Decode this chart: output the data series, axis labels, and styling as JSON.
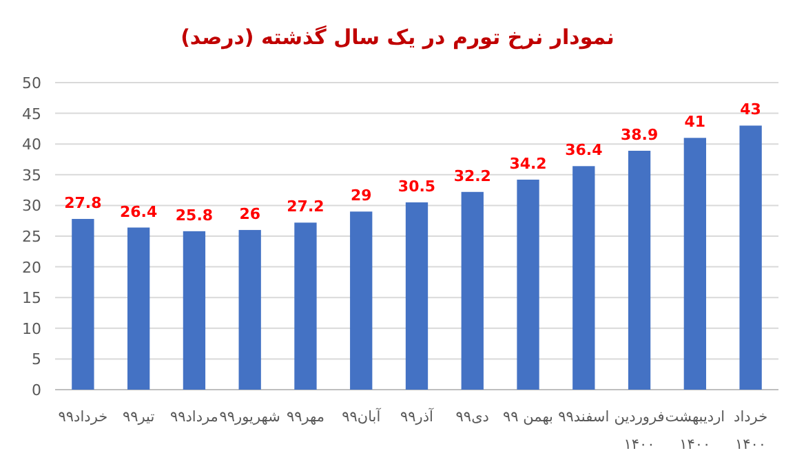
{
  "chart_data": {
    "type": "bar",
    "title": "نمودار نرخ تورم در یک سال گذشته (درصد)",
    "categories": [
      "خرداد۹۹",
      "تیر۹۹",
      "مرداد۹۹",
      "شهریور۹۹",
      "مهر۹۹",
      "آبان۹۹",
      "آذر۹۹",
      "دی۹۹",
      "بهمن ۹۹",
      "اسفند۹۹",
      "فروردین\n۱۴۰۰",
      "اردیبهشت\n۱۴۰۰",
      "خرداد\n۱۴۰۰"
    ],
    "values": [
      27.8,
      26.4,
      25.8,
      26,
      27.2,
      29,
      30.5,
      32.2,
      34.2,
      36.4,
      38.9,
      41,
      43
    ],
    "color": "#4472c4",
    "ylim": [
      0,
      50
    ],
    "yticks": [
      0,
      5,
      10,
      15,
      20,
      25,
      30,
      35,
      40,
      45,
      50
    ],
    "grid": "y",
    "data_labels": true
  }
}
